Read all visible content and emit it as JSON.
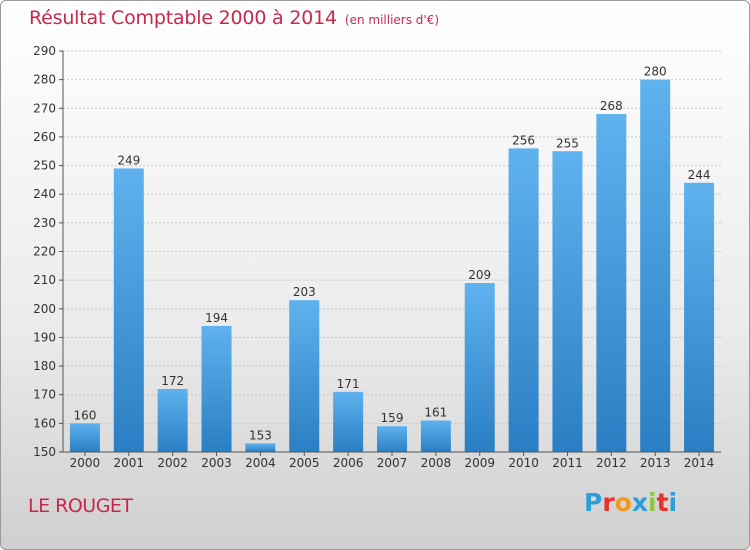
{
  "header": {
    "title": "Résultat Comptable 2000 à 2014",
    "unit": "(en milliers d'€)"
  },
  "footer": {
    "commune": "LE ROUGET",
    "logo_letters": [
      "P",
      "r",
      "o",
      "x",
      "i",
      "t",
      "i"
    ],
    "logo_colors": [
      "#2a9fd8",
      "#e8312a",
      "#f39a1b",
      "#2a9fd8",
      "#8dc63f",
      "#e8312a",
      "#2a9fd8"
    ]
  },
  "chart_data": {
    "type": "bar",
    "title": "Résultat Comptable 2000 à 2014",
    "subtitle": "(en milliers d'€)",
    "xlabel": "",
    "ylabel": "",
    "categories": [
      "2000",
      "2001",
      "2002",
      "2003",
      "2004",
      "2005",
      "2006",
      "2007",
      "2008",
      "2009",
      "2010",
      "2011",
      "2012",
      "2013",
      "2014"
    ],
    "values": [
      160,
      249,
      172,
      194,
      153,
      203,
      171,
      159,
      161,
      209,
      256,
      255,
      268,
      280,
      244
    ],
    "ylim": [
      150,
      290
    ],
    "yticks": [
      150,
      160,
      170,
      180,
      190,
      200,
      210,
      220,
      230,
      240,
      250,
      260,
      270,
      280,
      290
    ],
    "grid": true,
    "bar_color": "#3a9ae0",
    "data_labels": true
  }
}
